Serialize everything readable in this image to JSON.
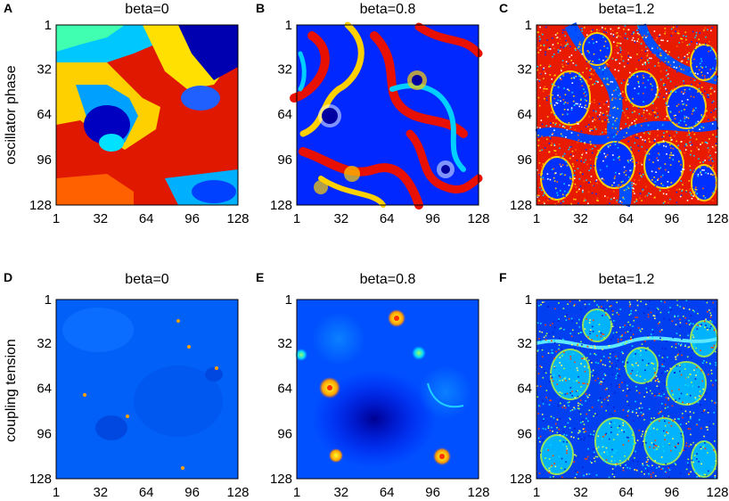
{
  "chart_data": [
    {
      "type": "heatmap",
      "panel": "A",
      "title": "beta=0",
      "ylabel": "oscillator phase",
      "xticks": [
        "1",
        "32",
        "64",
        "96",
        "128"
      ],
      "yticks": [
        "1",
        "32",
        "64",
        "96",
        "128"
      ],
      "grid_size": 128
    },
    {
      "type": "heatmap",
      "panel": "B",
      "title": "beta=0.8",
      "xticks": [
        "1",
        "32",
        "64",
        "96",
        "128"
      ],
      "yticks": [
        "1",
        "32",
        "64",
        "96",
        "128"
      ],
      "grid_size": 128
    },
    {
      "type": "heatmap",
      "panel": "C",
      "title": "beta=1.2",
      "xticks": [
        "1",
        "32",
        "64",
        "96",
        "128"
      ],
      "yticks": [
        "1",
        "32",
        "64",
        "96",
        "128"
      ],
      "grid_size": 128
    },
    {
      "type": "heatmap",
      "panel": "D",
      "title": "beta=0",
      "ylabel": "coupling tension",
      "xticks": [
        "1",
        "32",
        "64",
        "96",
        "128"
      ],
      "yticks": [
        "1",
        "32",
        "64",
        "96",
        "128"
      ],
      "grid_size": 128
    },
    {
      "type": "heatmap",
      "panel": "E",
      "title": "beta=0.8",
      "xticks": [
        "1",
        "32",
        "64",
        "96",
        "128"
      ],
      "yticks": [
        "1",
        "32",
        "64",
        "96",
        "128"
      ],
      "grid_size": 128
    },
    {
      "type": "heatmap",
      "panel": "F",
      "title": "beta=1.2",
      "xticks": [
        "1",
        "32",
        "64",
        "96",
        "128"
      ],
      "yticks": [
        "1",
        "32",
        "64",
        "96",
        "128"
      ],
      "grid_size": 128
    }
  ],
  "colormap": "jet",
  "colors": {
    "low": "#00008f",
    "mid": "#80ff80",
    "high": "#800000"
  }
}
